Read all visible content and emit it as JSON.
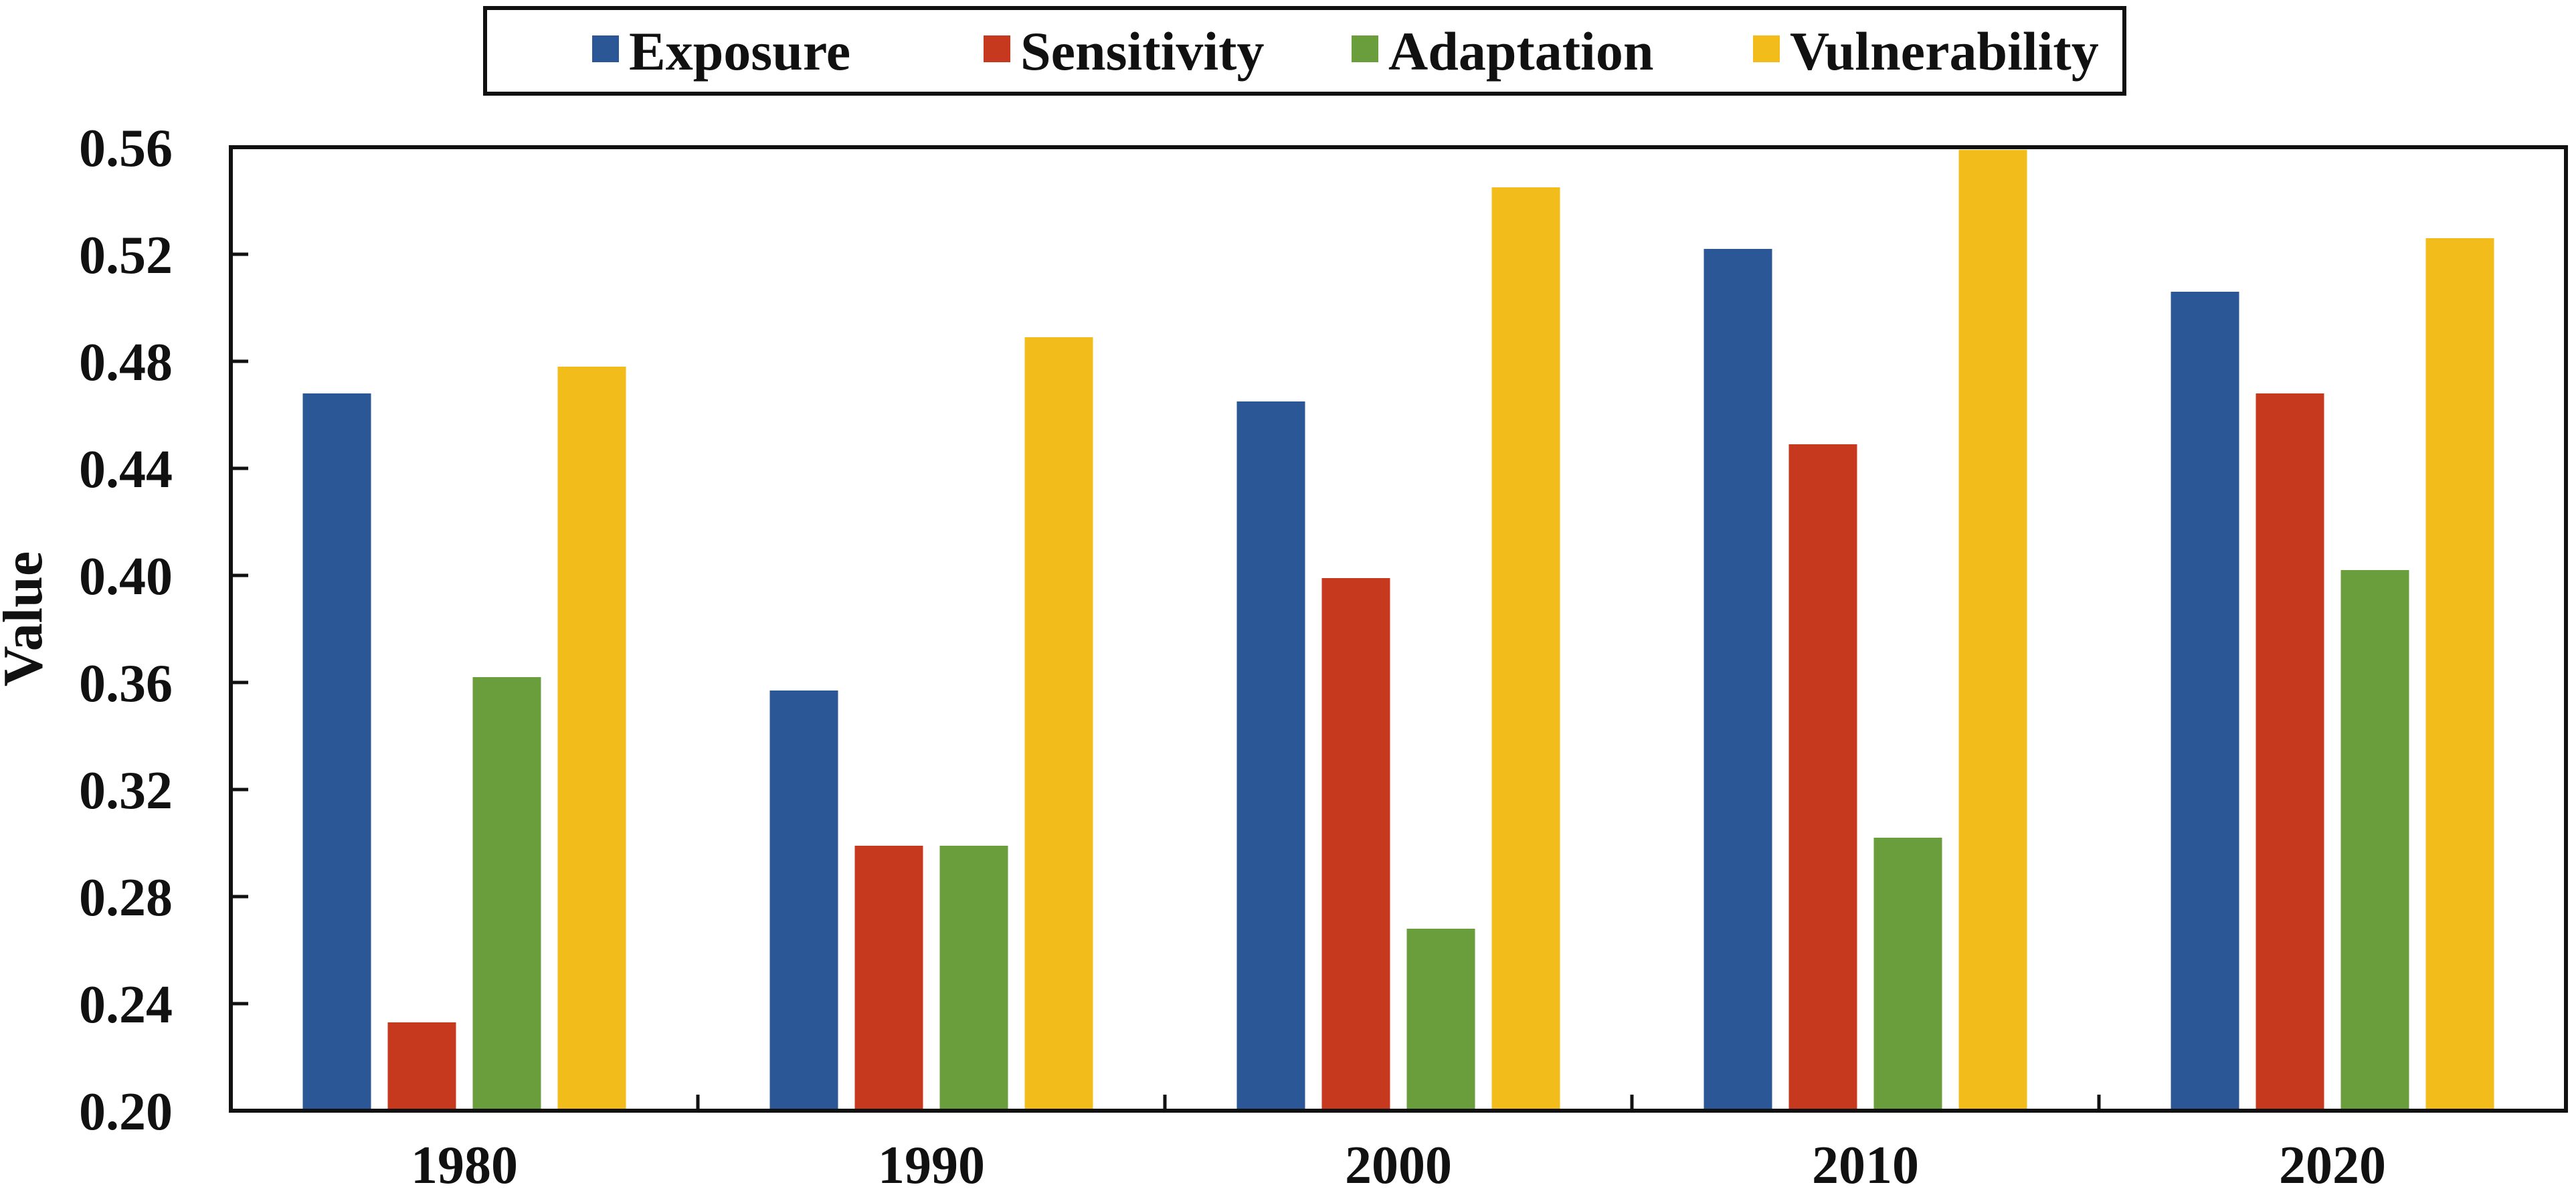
{
  "chart_data": {
    "type": "bar",
    "title": "",
    "xlabel": "",
    "ylabel": "Value",
    "categories": [
      "1980",
      "1990",
      "2000",
      "2010",
      "2020"
    ],
    "series": [
      {
        "name": "Exposure",
        "color": "#2b5797",
        "values": [
          0.468,
          0.357,
          0.465,
          0.522,
          0.506
        ]
      },
      {
        "name": "Sensitivity",
        "color": "#c7391f",
        "values": [
          0.233,
          0.299,
          0.399,
          0.449,
          0.468
        ]
      },
      {
        "name": "Adaptation",
        "color": "#6a9e3d",
        "values": [
          0.362,
          0.299,
          0.268,
          0.302,
          0.402
        ]
      },
      {
        "name": "Vulnerability",
        "color": "#f2bd1a",
        "values": [
          0.478,
          0.489,
          0.545,
          0.559,
          0.526
        ]
      }
    ],
    "ylim": [
      0.2,
      0.56
    ],
    "yticks": [
      "0.20",
      "0.24",
      "0.28",
      "0.32",
      "0.36",
      "0.40",
      "0.44",
      "0.48",
      "0.52",
      "0.56"
    ],
    "grid": false,
    "legend_position": "top-center"
  }
}
